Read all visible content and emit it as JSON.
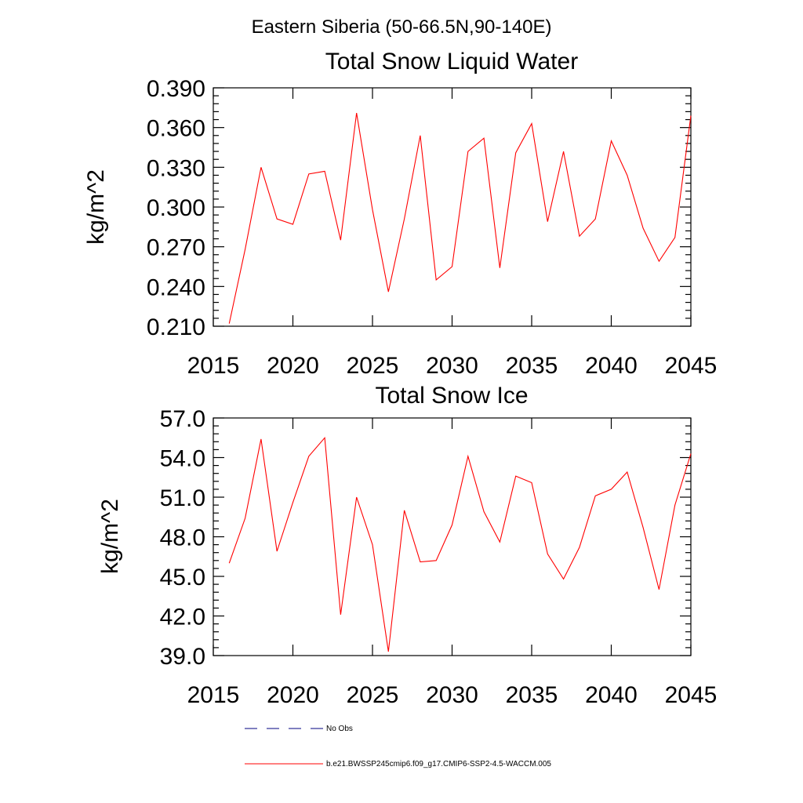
{
  "figure_title": "Eastern Siberia (50-66.5N,90-140E)",
  "legend": [
    {
      "label": "No Obs",
      "color": "#000080",
      "style": "dashed"
    },
    {
      "label": "b.e21.BWSSP245cmip6.f09_g17.CMIP6-SSP2-4.5-WACCM.005",
      "color": "#ff0000",
      "style": "solid"
    }
  ],
  "chart_data": [
    {
      "type": "line",
      "title": "Total Snow Liquid Water",
      "xlabel": "",
      "ylabel": "kg/m^2",
      "xlim": [
        2015,
        2045
      ],
      "ylim": [
        0.21,
        0.39
      ],
      "x_ticks": [
        2015,
        2020,
        2025,
        2030,
        2035,
        2040,
        2045
      ],
      "y_ticks": [
        "0.210",
        "0.240",
        "0.270",
        "0.300",
        "0.330",
        "0.360",
        "0.390"
      ],
      "grid": false,
      "series": [
        {
          "color": "#ff0000",
          "x": [
            2016,
            2017,
            2018,
            2019,
            2020,
            2021,
            2022,
            2023,
            2024,
            2025,
            2026,
            2027,
            2028,
            2029,
            2030,
            2031,
            2032,
            2033,
            2034,
            2035,
            2036,
            2037,
            2038,
            2039,
            2040,
            2041,
            2042,
            2043,
            2044,
            2045
          ],
          "values": [
            0.212,
            0.268,
            0.33,
            0.291,
            0.287,
            0.325,
            0.327,
            0.275,
            0.371,
            0.298,
            0.236,
            0.291,
            0.354,
            0.245,
            0.255,
            0.342,
            0.352,
            0.254,
            0.341,
            0.363,
            0.289,
            0.342,
            0.278,
            0.291,
            0.35,
            0.324,
            0.284,
            0.259,
            0.277,
            0.369
          ]
        }
      ]
    },
    {
      "type": "line",
      "title": "Total Snow Ice",
      "xlabel": "",
      "ylabel": "kg/m^2",
      "xlim": [
        2015,
        2045
      ],
      "ylim": [
        39.0,
        57.0
      ],
      "x_ticks": [
        2015,
        2020,
        2025,
        2030,
        2035,
        2040,
        2045
      ],
      "y_ticks": [
        "39.0",
        "42.0",
        "45.0",
        "48.0",
        "51.0",
        "54.0",
        "57.0"
      ],
      "grid": false,
      "series": [
        {
          "color": "#ff0000",
          "x": [
            2016,
            2017,
            2018,
            2019,
            2020,
            2021,
            2022,
            2023,
            2024,
            2025,
            2026,
            2027,
            2028,
            2029,
            2030,
            2031,
            2032,
            2033,
            2034,
            2035,
            2036,
            2037,
            2038,
            2039,
            2040,
            2041,
            2042,
            2043,
            2044,
            2045
          ],
          "values": [
            46.0,
            49.4,
            55.4,
            46.9,
            50.6,
            54.1,
            55.5,
            42.1,
            51.0,
            47.4,
            39.3,
            50.0,
            46.1,
            46.2,
            48.9,
            54.1,
            49.9,
            47.6,
            52.6,
            52.1,
            46.7,
            44.8,
            47.2,
            51.1,
            51.6,
            52.9,
            48.7,
            44.0,
            50.4,
            54.3
          ]
        }
      ]
    }
  ]
}
